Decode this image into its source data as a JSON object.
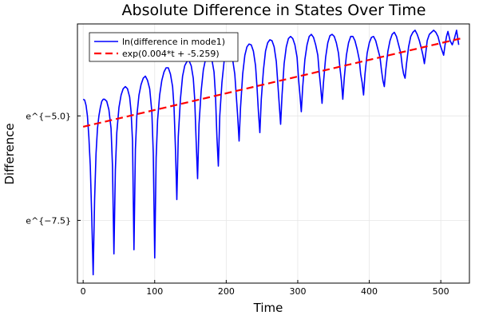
{
  "chart_data": {
    "type": "line",
    "title": "Absolute Difference in States Over Time",
    "xlabel": "Time",
    "ylabel": "Difference",
    "xlim": [
      -8,
      540
    ],
    "ylim": [
      -9.0,
      -2.8
    ],
    "grid": true,
    "legend_position": "top-left",
    "x_ticks": [
      0,
      100,
      200,
      300,
      400,
      500
    ],
    "x_tick_labels": [
      "0",
      "100",
      "200",
      "300",
      "400",
      "500"
    ],
    "y_ticks": [
      -5.0,
      -7.5
    ],
    "y_tick_labels": [
      "e^{−5.0}",
      "e^{−7.5}"
    ],
    "series": [
      {
        "name": "ln(difference in mode1)",
        "color": "#0000ff",
        "style": "solid",
        "x": [
          0,
          2,
          4,
          6,
          8,
          10,
          12,
          14,
          16,
          18,
          20,
          22,
          24,
          26,
          28,
          30,
          33,
          36,
          39,
          41,
          43,
          45,
          47,
          50,
          53,
          56,
          59,
          62,
          65,
          67,
          69,
          71,
          73,
          75,
          78,
          81,
          84,
          87,
          90,
          93,
          96,
          98,
          100,
          102,
          104,
          107,
          110,
          113,
          116,
          119,
          122,
          125,
          127,
          129,
          131,
          133,
          136,
          139,
          142,
          145,
          148,
          151,
          154,
          156,
          158,
          160,
          162,
          165,
          168,
          171,
          174,
          177,
          180,
          183,
          185,
          187,
          189,
          191,
          194,
          197,
          200,
          203,
          206,
          209,
          212,
          214,
          216,
          218,
          220,
          223,
          226,
          229,
          232,
          235,
          238,
          241,
          243,
          245,
          247,
          249,
          252,
          255,
          258,
          261,
          264,
          267,
          270,
          272,
          274,
          276,
          278,
          281,
          284,
          287,
          290,
          293,
          296,
          299,
          301,
          303,
          305,
          307,
          310,
          313,
          316,
          319,
          322,
          325,
          328,
          330,
          332,
          334,
          336,
          339,
          342,
          345,
          348,
          351,
          354,
          357,
          359,
          361,
          363,
          365,
          368,
          371,
          374,
          377,
          380,
          383,
          386,
          388,
          390,
          392,
          394,
          397,
          400,
          403,
          406,
          409,
          412,
          415,
          417,
          419,
          421,
          423,
          426,
          429,
          432,
          435,
          438,
          441,
          444,
          446,
          448,
          450,
          452,
          455,
          458,
          461,
          464,
          467,
          470,
          473,
          475,
          477,
          479,
          481,
          484,
          487,
          490,
          493,
          496,
          499,
          502,
          504,
          506,
          508,
          510,
          513,
          516,
          519,
          522,
          525
        ],
        "y": [
          -4.6,
          -4.62,
          -4.75,
          -5.0,
          -5.5,
          -6.2,
          -7.4,
          -8.8,
          -7.0,
          -5.9,
          -5.3,
          -5.0,
          -4.8,
          -4.65,
          -4.6,
          -4.6,
          -4.65,
          -4.85,
          -5.3,
          -6.2,
          -8.3,
          -6.3,
          -5.4,
          -4.8,
          -4.5,
          -4.35,
          -4.3,
          -4.35,
          -4.55,
          -4.9,
          -5.6,
          -8.2,
          -5.8,
          -5.0,
          -4.5,
          -4.25,
          -4.1,
          -4.05,
          -4.15,
          -4.35,
          -4.9,
          -5.9,
          -8.4,
          -6.0,
          -5.1,
          -4.5,
          -4.15,
          -3.95,
          -3.85,
          -3.85,
          -4.0,
          -4.3,
          -4.8,
          -5.8,
          -7.0,
          -5.5,
          -4.6,
          -4.05,
          -3.8,
          -3.7,
          -3.68,
          -3.8,
          -4.1,
          -4.6,
          -5.6,
          -6.5,
          -5.2,
          -4.4,
          -3.9,
          -3.65,
          -3.55,
          -3.55,
          -3.65,
          -3.95,
          -4.5,
          -5.5,
          -6.2,
          -5.0,
          -4.2,
          -3.7,
          -3.45,
          -3.4,
          -3.45,
          -3.65,
          -4.0,
          -4.5,
          -5.0,
          -5.6,
          -4.8,
          -4.0,
          -3.55,
          -3.35,
          -3.28,
          -3.3,
          -3.45,
          -3.8,
          -4.3,
          -4.9,
          -5.4,
          -4.6,
          -3.9,
          -3.45,
          -3.25,
          -3.18,
          -3.2,
          -3.35,
          -3.7,
          -4.2,
          -4.7,
          -5.2,
          -4.5,
          -3.75,
          -3.35,
          -3.15,
          -3.1,
          -3.15,
          -3.3,
          -3.6,
          -4.1,
          -4.5,
          -4.9,
          -4.3,
          -3.65,
          -3.3,
          -3.1,
          -3.05,
          -3.12,
          -3.3,
          -3.55,
          -3.95,
          -4.3,
          -4.7,
          -4.2,
          -3.6,
          -3.25,
          -3.08,
          -3.05,
          -3.1,
          -3.25,
          -3.5,
          -3.85,
          -4.15,
          -4.6,
          -4.1,
          -3.55,
          -3.25,
          -3.1,
          -3.1,
          -3.2,
          -3.4,
          -3.65,
          -4.0,
          -4.2,
          -4.5,
          -4.0,
          -3.5,
          -3.25,
          -3.12,
          -3.1,
          -3.2,
          -3.4,
          -3.6,
          -3.9,
          -4.15,
          -4.3,
          -3.9,
          -3.45,
          -3.2,
          -3.05,
          -3.0,
          -3.1,
          -3.3,
          -3.5,
          -3.8,
          -4.0,
          -4.1,
          -3.75,
          -3.35,
          -3.1,
          -3.0,
          -2.95,
          -3.05,
          -3.2,
          -3.4,
          -3.55,
          -3.75,
          -3.5,
          -3.2,
          -3.05,
          -3.0,
          -2.95,
          -3.0,
          -3.1,
          -3.3,
          -3.45,
          -3.55,
          -3.3,
          -3.1,
          -2.98,
          -3.2,
          -3.3,
          -3.15,
          -2.95,
          -3.3
        ]
      },
      {
        "name": "exp(0.004*t + -5.259)",
        "color": "#ff0000",
        "style": "dashed",
        "x": [
          0,
          528
        ],
        "y": [
          -5.259,
          -3.147
        ]
      }
    ]
  }
}
